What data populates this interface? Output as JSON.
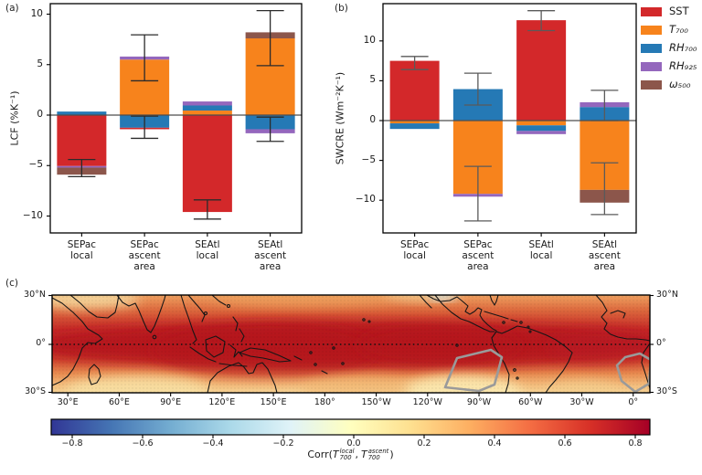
{
  "figure": {
    "panel_labels": {
      "a": "(a)",
      "b": "(b)",
      "c": "(c)"
    }
  },
  "legend": {
    "items": [
      {
        "label": "SST",
        "color": "#d3282a",
        "italic": false
      },
      {
        "label": "T₇₀₀",
        "color": "#f7831c",
        "italic": true
      },
      {
        "label": "RH₇₀₀",
        "color": "#2579b5",
        "italic": true
      },
      {
        "label": "RH₉₂₅",
        "color": "#9467bd",
        "italic": true
      },
      {
        "label": "ω₅₀₀",
        "color": "#8c564b",
        "italic": true
      }
    ]
  },
  "series_colors": {
    "SST": "#d3282a",
    "T700": "#f7831c",
    "RH700": "#2579b5",
    "RH925": "#9467bd",
    "w500": "#8c564b"
  },
  "chart_data": [
    {
      "id": "a",
      "type": "bar",
      "stacked": true,
      "ylabel": "LCF (%K⁻¹)",
      "ylim": [
        -11.7,
        11
      ],
      "yticks": [
        10,
        5,
        0,
        -5,
        -10
      ],
      "categories": [
        "SEPac\nlocal",
        "SEPac\nascent\narea",
        "SEAtl\nlocal",
        "SEAtl\nascent\narea"
      ],
      "series_order": [
        "SST",
        "T700",
        "RH700",
        "RH925",
        "w500"
      ],
      "bars": [
        {
          "category": "SEPac\nlocal",
          "segments": [
            {
              "series": "RH700",
              "from": 0,
              "to": 0.35
            },
            {
              "series": "SST",
              "from": 0,
              "to": -5.05
            },
            {
              "series": "RH925",
              "from": -5.05,
              "to": -5.2
            },
            {
              "series": "w500",
              "from": -5.2,
              "to": -5.9
            }
          ],
          "error_bars": [
            {
              "high": -4.4,
              "low": -6.1
            }
          ]
        },
        {
          "category": "SEPac\nascent\narea",
          "segments": [
            {
              "series": "T700",
              "from": 0,
              "to": 5.5
            },
            {
              "series": "RH925",
              "from": 5.5,
              "to": 5.8
            },
            {
              "series": "RH700",
              "from": 0,
              "to": -1.25
            },
            {
              "series": "SST",
              "from": -1.25,
              "to": -1.4
            }
          ],
          "error_bars": [
            {
              "high": 7.95,
              "low": 3.4
            },
            {
              "high": -0.1,
              "low": -2.3
            }
          ]
        },
        {
          "category": "SEAtl\nlocal",
          "segments": [
            {
              "series": "T700",
              "from": 0,
              "to": 0.45
            },
            {
              "series": "RH700",
              "from": 0.45,
              "to": 0.95
            },
            {
              "series": "RH925",
              "from": 0.95,
              "to": 1.35
            },
            {
              "series": "SST",
              "from": 0,
              "to": -9.6
            }
          ],
          "error_bars": [
            {
              "high": -8.4,
              "low": -10.3
            }
          ]
        },
        {
          "category": "SEAtl\nascent\narea",
          "segments": [
            {
              "series": "T700",
              "from": 0,
              "to": 7.6
            },
            {
              "series": "w500",
              "from": 7.6,
              "to": 8.2
            },
            {
              "series": "RH700",
              "from": 0,
              "to": -1.4
            },
            {
              "series": "RH925",
              "from": -1.4,
              "to": -1.8
            }
          ],
          "error_bars": [
            {
              "high": 10.35,
              "low": 4.9
            },
            {
              "high": -0.2,
              "low": -2.6
            }
          ]
        }
      ]
    },
    {
      "id": "b",
      "type": "bar",
      "stacked": true,
      "ylabel": "SWCRE (Wm⁻²K⁻¹)",
      "ylim": [
        -14.1,
        14.7
      ],
      "yticks": [
        10,
        5,
        0,
        -5,
        -10
      ],
      "categories": [
        "SEPac\nlocal",
        "SEPac\nascent\narea",
        "SEAtl\nlocal",
        "SEAtl\nascent\narea"
      ],
      "series_order": [
        "SST",
        "T700",
        "RH700",
        "RH925",
        "w500"
      ],
      "bars": [
        {
          "category": "SEPac\nlocal",
          "segments": [
            {
              "series": "SST",
              "from": 0,
              "to": 7.5
            },
            {
              "series": "T700",
              "from": 0,
              "to": -0.35
            },
            {
              "series": "RH700",
              "from": -0.35,
              "to": -1.05
            }
          ],
          "error_bars": [
            {
              "high": 8.05,
              "low": 6.4
            }
          ]
        },
        {
          "category": "SEPac\nascent\narea",
          "segments": [
            {
              "series": "RH700",
              "from": 0,
              "to": 3.95
            },
            {
              "series": "T700",
              "from": 0,
              "to": -9.2
            },
            {
              "series": "RH925",
              "from": -9.2,
              "to": -9.55
            }
          ],
          "error_bars": [
            {
              "high": 5.95,
              "low": 1.95
            },
            {
              "high": -5.75,
              "low": -12.6
            }
          ]
        },
        {
          "category": "SEAtl\nlocal",
          "segments": [
            {
              "series": "SST",
              "from": 0,
              "to": 12.6
            },
            {
              "series": "T700",
              "from": 0,
              "to": -0.6
            },
            {
              "series": "RH700",
              "from": -0.6,
              "to": -1.3
            },
            {
              "series": "RH925",
              "from": -1.3,
              "to": -1.7
            }
          ],
          "error_bars": [
            {
              "high": 13.8,
              "low": 11.3
            }
          ]
        },
        {
          "category": "SEAtl\nascent\narea",
          "segments": [
            {
              "series": "RH700",
              "from": 0,
              "to": 1.7
            },
            {
              "series": "RH925",
              "from": 1.7,
              "to": 2.3
            },
            {
              "series": "T700",
              "from": 0,
              "to": -8.7
            },
            {
              "series": "w500",
              "from": -8.7,
              "to": -10.3
            }
          ],
          "error_bars": [
            {
              "high": 3.8,
              "low": 0.0
            },
            {
              "high": -5.3,
              "low": -11.8
            }
          ]
        }
      ]
    },
    {
      "id": "c",
      "type": "heatmap",
      "cmap": "RdYlBu_r",
      "lat_ticks": [
        "30°N",
        "0°",
        "30°S"
      ],
      "lon_ticks": [
        "30°E",
        "60°E",
        "90°E",
        "120°E",
        "150°E",
        "180°",
        "150°W",
        "120°W",
        "90°W",
        "60°W",
        "30°W",
        "0°"
      ],
      "highlighted_regions": [
        "SEPac",
        "SEAtl"
      ],
      "colorbar": {
        "ticks": [
          -0.8,
          -0.6,
          -0.4,
          -0.2,
          0.0,
          0.2,
          0.4,
          0.6,
          0.8
        ],
        "label_parts": {
          "func": "Corr(",
          "t1_base": "T",
          "t1_sup": "local",
          "t1_sub": "700",
          "sep": ",",
          "t2_base": "T",
          "t2_sup": "ascent",
          "t2_sub": "700",
          "close": ")"
        }
      }
    }
  ]
}
